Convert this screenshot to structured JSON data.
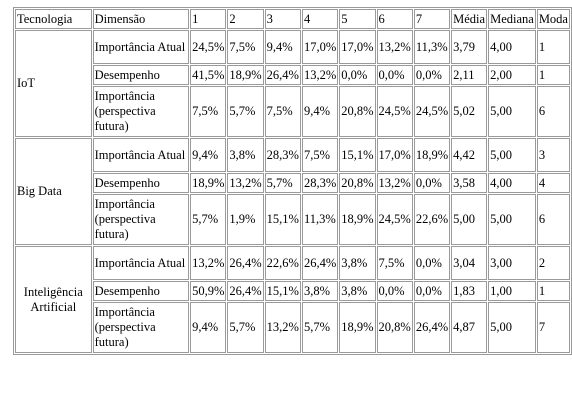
{
  "table": {
    "headers": [
      "Tecnologia",
      "Dimensão",
      "1",
      "2",
      "3",
      "4",
      "5",
      "6",
      "7",
      "Média",
      "Mediana",
      "Moda"
    ],
    "groups": [
      {
        "technology": "IoT",
        "rows": [
          {
            "dimension": "Importância Atual",
            "values": [
              "24,5%",
              "7,5%",
              "9,4%",
              "17,0%",
              "17,0%",
              "13,2%",
              "11,3%",
              "3,79",
              "4,00",
              "1"
            ]
          },
          {
            "dimension": "Desempenho",
            "values": [
              "41,5%",
              "18,9%",
              "26,4%",
              "13,2%",
              "0,0%",
              "0,0%",
              "0,0%",
              "2,11",
              "2,00",
              "1"
            ]
          },
          {
            "dimension": "Importância (perspectiva futura)",
            "values": [
              "7,5%",
              "5,7%",
              "7,5%",
              "9,4%",
              "20,8%",
              "24,5%",
              "24,5%",
              "5,02",
              "5,00",
              "6"
            ]
          }
        ]
      },
      {
        "technology": "Big Data",
        "rows": [
          {
            "dimension": "Importância Atual",
            "values": [
              "9,4%",
              "3,8%",
              "28,3%",
              "7,5%",
              "15,1%",
              "17,0%",
              "18,9%",
              "4,42",
              "5,00",
              "3"
            ]
          },
          {
            "dimension": "Desempenho",
            "values": [
              "18,9%",
              "13,2%",
              "5,7%",
              "28,3%",
              "20,8%",
              "13,2%",
              "0,0%",
              "3,58",
              "4,00",
              "4"
            ]
          },
          {
            "dimension": "Importância (perspectiva futura)",
            "values": [
              "5,7%",
              "1,9%",
              "15,1%",
              "11,3%",
              "18,9%",
              "24,5%",
              "22,6%",
              "5,00",
              "5,00",
              "6"
            ]
          }
        ]
      },
      {
        "technology": "Inteligência Artificial",
        "rows": [
          {
            "dimension": "Importância Atual",
            "values": [
              "13,2%",
              "26,4%",
              "22,6%",
              "26,4%",
              "3,8%",
              "7,5%",
              "0,0%",
              "3,04",
              "3,00",
              "2"
            ]
          },
          {
            "dimension": "Desempenho",
            "values": [
              "50,9%",
              "26,4%",
              "15,1%",
              "3,8%",
              "3,8%",
              "0,0%",
              "0,0%",
              "1,83",
              "1,00",
              "1"
            ]
          },
          {
            "dimension": "Importância (perspectiva futura)",
            "values": [
              "9,4%",
              "5,7%",
              "13,2%",
              "5,7%",
              "18,9%",
              "20,8%",
              "26,4%",
              "4,87",
              "5,00",
              "7"
            ]
          }
        ]
      }
    ]
  }
}
